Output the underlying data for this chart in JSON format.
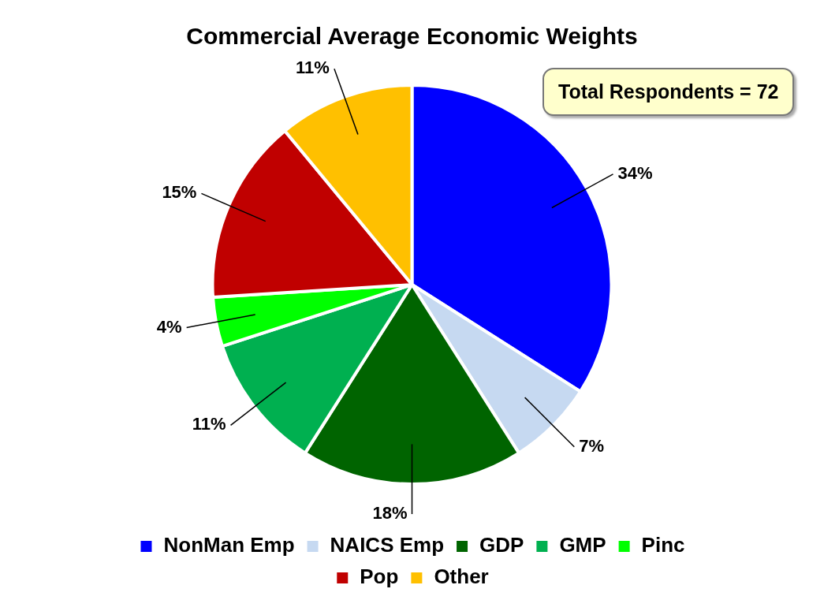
{
  "chart_data": {
    "type": "pie",
    "title": "Commercial Average Economic Weights",
    "categories": [
      "NonMan Emp",
      "NAICS Emp",
      "GDP",
      "GMP",
      "Pinc",
      "Pop",
      "Other"
    ],
    "values": [
      34,
      7,
      18,
      11,
      4,
      15,
      11
    ],
    "value_labels": [
      "34%",
      "7%",
      "18%",
      "11%",
      "4%",
      "15%",
      "11%"
    ],
    "colors": [
      "#0000ff",
      "#c6d9f1",
      "#006400",
      "#00b050",
      "#00ff00",
      "#c00000",
      "#ffc000"
    ],
    "legend": "bottom",
    "annotations": [
      "Total Respondents = 72"
    ]
  }
}
